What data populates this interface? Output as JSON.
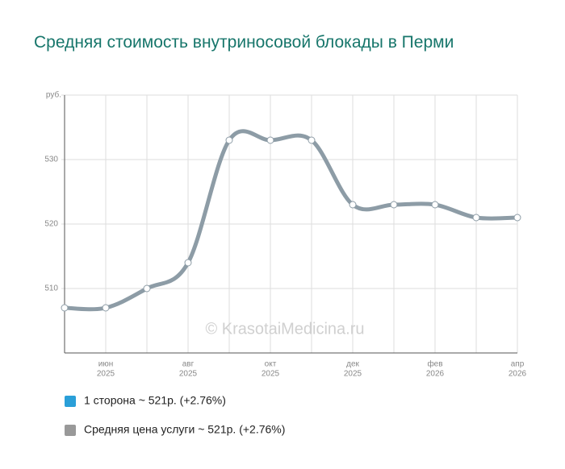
{
  "chart_data": {
    "type": "line",
    "title": "Средняя стоимость внутриносовой блокады в Перми",
    "watermark": "© KrasotaiMedicina.ru",
    "y_unit": "руб.",
    "categories": [
      null,
      {
        "month": "июн",
        "year": "2025"
      },
      null,
      {
        "month": "авг",
        "year": "2025"
      },
      null,
      {
        "month": "окт",
        "year": "2025"
      },
      null,
      {
        "month": "дек",
        "year": "2025"
      },
      null,
      {
        "month": "фев",
        "year": "2026"
      },
      null,
      {
        "month": "апр",
        "year": "2026"
      }
    ],
    "series": [
      {
        "name": "1 сторона ~ 521р. (+2.76%)",
        "color": "#2a9fd8",
        "values": [
          507,
          507,
          510,
          514,
          533,
          533,
          533,
          523,
          523,
          523,
          521,
          521
        ]
      },
      {
        "name": "Средняя цена услуги ~ 521р. (+2.76%)",
        "color": "#8d9ca6",
        "values": [
          507,
          507,
          510,
          514,
          533,
          533,
          533,
          523,
          523,
          523,
          521,
          521
        ]
      }
    ],
    "legend_colors": [
      "#2a9fd8",
      "#999999"
    ],
    "ylim": [
      500,
      540
    ],
    "yticks": [
      510,
      520,
      530
    ],
    "grid": true
  }
}
